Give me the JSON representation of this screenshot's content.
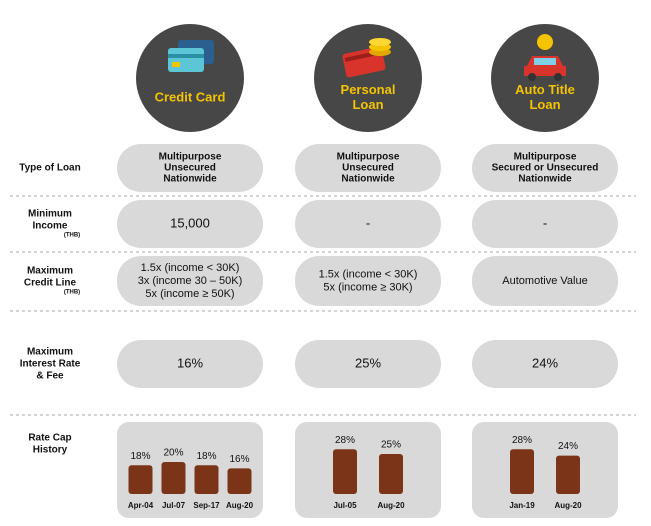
{
  "columns": [
    {
      "title": [
        "Credit Card"
      ]
    },
    {
      "title": [
        "Personal",
        "Loan"
      ]
    },
    {
      "title": [
        "Auto Title",
        "Loan"
      ]
    }
  ],
  "rows": [
    {
      "label": [
        "Type of Loan"
      ],
      "cells": [
        [
          "Multipurpose",
          "Unsecured",
          "Nationwide"
        ],
        [
          "Multipurpose",
          "Unsecured",
          "Nationwide"
        ],
        [
          "Multipurpose",
          "Secured or Unsecured",
          "Nationwide"
        ]
      ]
    },
    {
      "label": [
        "Minimum",
        "Income"
      ],
      "unit": "(THB)",
      "cells": [
        [
          "15,000"
        ],
        [
          "-"
        ],
        [
          "-"
        ]
      ]
    },
    {
      "label": [
        "Maximum",
        "Credit Line"
      ],
      "unit": "(THB)",
      "cells": [
        [
          "1.5x (income < 30K)",
          "3x (income 30 – 50K)",
          "5x (income ≥ 50K)"
        ],
        [
          "1.5x (income < 30K)",
          "5x (income ≥ 30K)"
        ],
        [
          "Automotive Value"
        ]
      ]
    },
    {
      "label": [
        "Maximum",
        "Interest Rate",
        "& Fee"
      ],
      "cells": [
        [
          "16%"
        ],
        [
          "25%"
        ],
        [
          "24%"
        ]
      ]
    }
  ],
  "history": {
    "label": [
      "Rate Cap",
      "History"
    ],
    "charts": [
      {
        "categories": [
          "Apr-04",
          "Jul-07",
          "Sep-17",
          "Aug-20"
        ],
        "values": [
          18,
          20,
          18,
          16
        ],
        "value_labels": [
          "18%",
          "20%",
          "18%",
          "16%"
        ]
      },
      {
        "categories": [
          "Jul-05",
          "Aug-20"
        ],
        "values": [
          28,
          25
        ],
        "value_labels": [
          "28%",
          "25%"
        ]
      },
      {
        "categories": [
          "Jan-19",
          "Aug-20"
        ],
        "values": [
          28,
          24
        ],
        "value_labels": [
          "28%",
          "24%"
        ]
      }
    ]
  }
}
